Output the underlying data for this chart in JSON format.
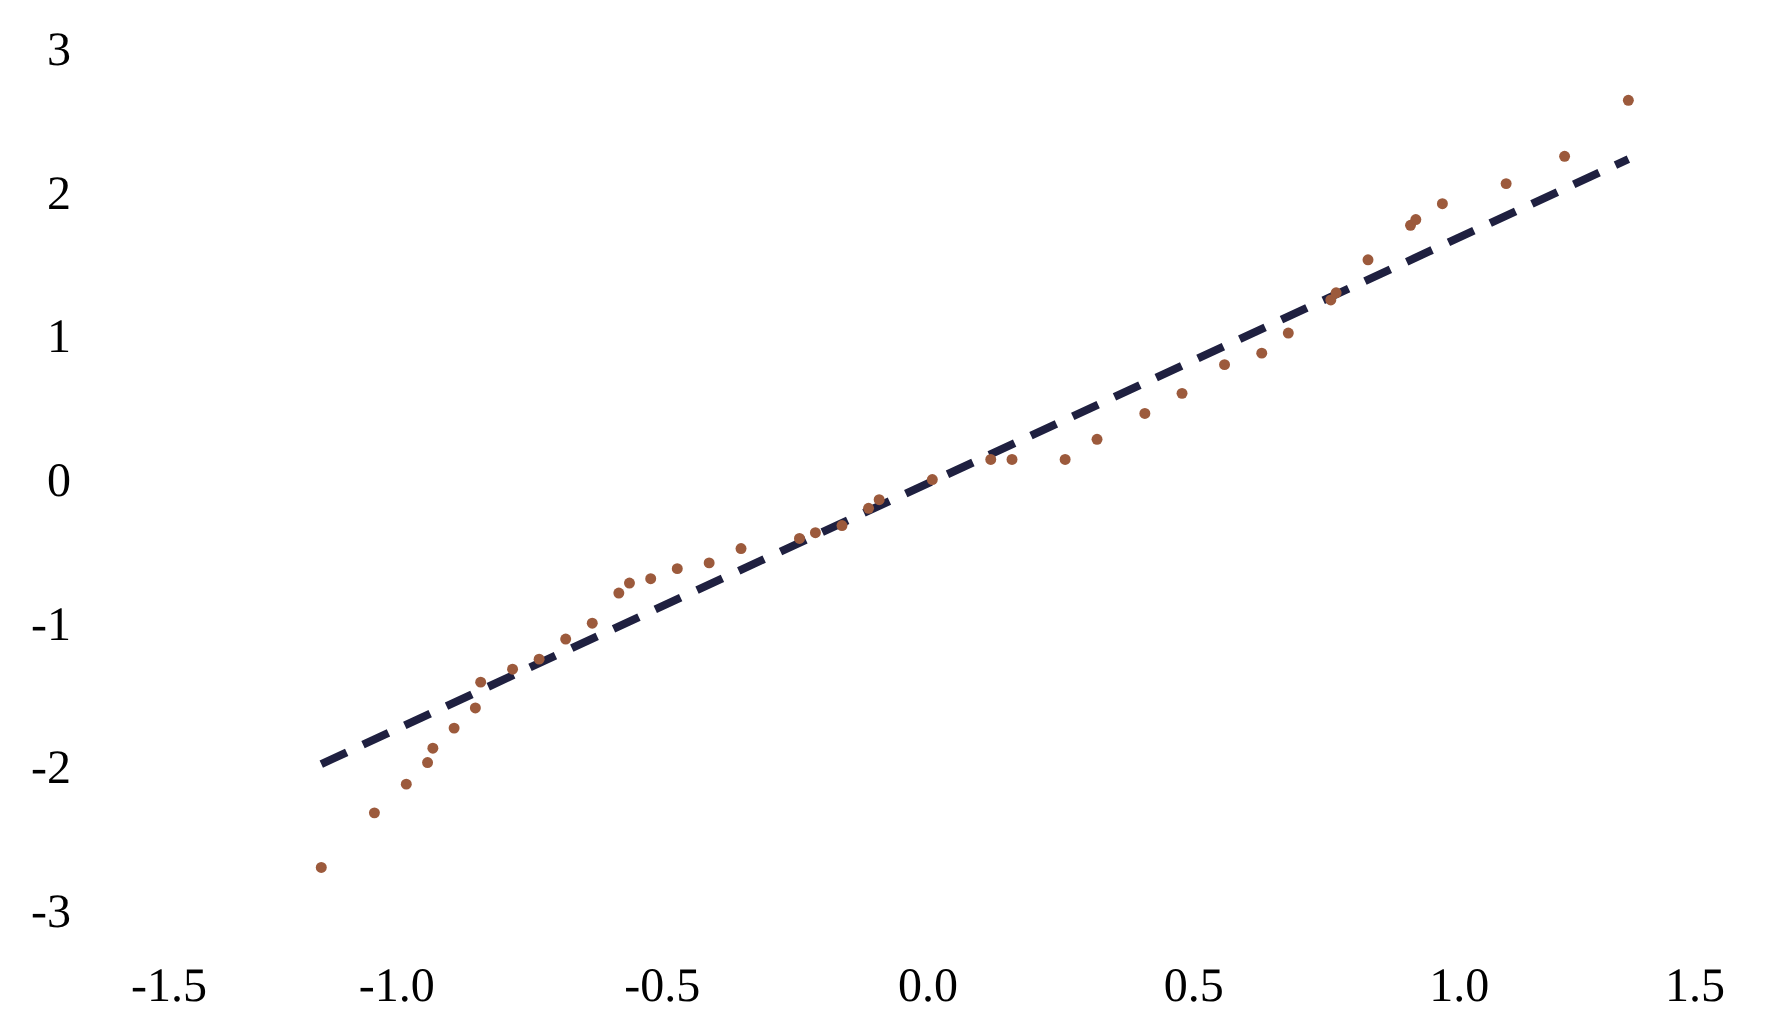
{
  "chart_data": {
    "type": "scatter",
    "xlim": [
      -1.5,
      1.5
    ],
    "ylim": [
      -3,
      3
    ],
    "xticks": [
      -1.5,
      {
        "value": -1,
        "label": "-1.0"
      },
      -0.5,
      {
        "value": 0,
        "label": "0.0"
      },
      0.5,
      {
        "value": 1,
        "label": "1.0"
      },
      1.5
    ],
    "yticks": [
      -3,
      -2,
      -1,
      0,
      1,
      2,
      3
    ],
    "grid": false,
    "series": [
      {
        "marker": "circle",
        "color": "#9c5a3c",
        "x": [
          -1.14,
          -1.04,
          -0.98,
          -0.94,
          -0.93,
          -0.89,
          -0.85,
          -0.84,
          -0.78,
          -0.73,
          -0.68,
          -0.63,
          -0.58,
          -0.56,
          -0.52,
          -0.47,
          -0.41,
          -0.35,
          -0.24,
          -0.21,
          -0.16,
          -0.11,
          -0.09,
          0.01,
          0.12,
          0.16,
          0.26,
          0.32,
          0.41,
          0.48,
          0.56,
          0.63,
          0.68,
          0.76,
          0.77,
          0.83,
          0.91,
          0.92,
          0.97,
          1.09,
          1.2,
          1.32
        ],
        "values": [
          -2.69,
          -2.31,
          -2.11,
          -1.96,
          -1.86,
          -1.72,
          -1.58,
          -1.4,
          -1.31,
          -1.24,
          -1.1,
          -0.99,
          -0.78,
          -0.71,
          -0.68,
          -0.61,
          -0.57,
          -0.47,
          -0.4,
          -0.36,
          -0.31,
          -0.19,
          -0.13,
          0.01,
          0.15,
          0.15,
          0.15,
          0.29,
          0.47,
          0.61,
          0.81,
          0.89,
          1.03,
          1.26,
          1.31,
          1.54,
          1.78,
          1.82,
          1.93,
          2.07,
          2.26,
          2.65
        ]
      },
      {
        "type": "line",
        "color": "#1f2040",
        "line_style": "dashed",
        "x": [
          -1.14,
          1.32
        ],
        "values": [
          -1.97,
          2.24
        ]
      }
    ]
  }
}
